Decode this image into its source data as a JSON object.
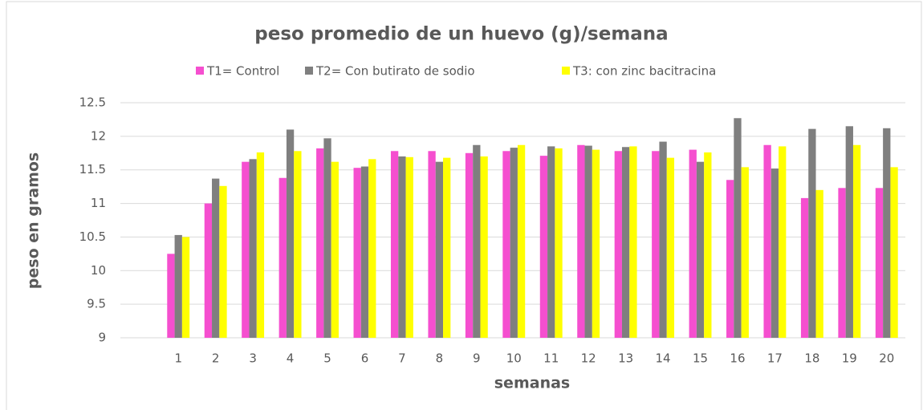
{
  "chart_data": {
    "type": "bar",
    "title": "peso promedio de un huevo (g)/semana",
    "x_label": "semanas",
    "y_label": "peso en gramos",
    "categories": [
      "1",
      "2",
      "3",
      "4",
      "5",
      "6",
      "7",
      "8",
      "9",
      "10",
      "11",
      "12",
      "13",
      "14",
      "15",
      "16",
      "17",
      "18",
      "19",
      "20"
    ],
    "series": [
      {
        "name": "T1= Control",
        "color": "#f54fcf",
        "values": [
          10.25,
          11.0,
          11.62,
          11.38,
          11.82,
          11.53,
          11.78,
          11.78,
          11.75,
          11.78,
          11.71,
          11.87,
          11.78,
          11.78,
          11.8,
          11.35,
          11.87,
          11.08,
          11.23,
          11.23
        ]
      },
      {
        "name": "T2= Con butirato de sodio",
        "color": "#7f7f7f",
        "values": [
          10.53,
          11.37,
          11.66,
          12.1,
          11.97,
          11.55,
          11.7,
          11.62,
          11.87,
          11.83,
          11.85,
          11.86,
          11.84,
          11.92,
          11.62,
          12.27,
          11.52,
          12.11,
          12.15,
          12.12
        ]
      },
      {
        "name": "T3: con zinc bacitracina",
        "color": "#ffff00",
        "values": [
          10.5,
          11.26,
          11.76,
          11.78,
          11.62,
          11.66,
          11.69,
          11.68,
          11.7,
          11.87,
          11.82,
          11.8,
          11.85,
          11.68,
          11.76,
          11.54,
          11.85,
          11.2,
          11.87,
          11.54
        ]
      }
    ],
    "ylim": [
      9,
      12.5
    ],
    "yticks": [
      9,
      9.5,
      10,
      10.5,
      11,
      11.5,
      12,
      12.5
    ],
    "grid": true,
    "legend": "top"
  }
}
